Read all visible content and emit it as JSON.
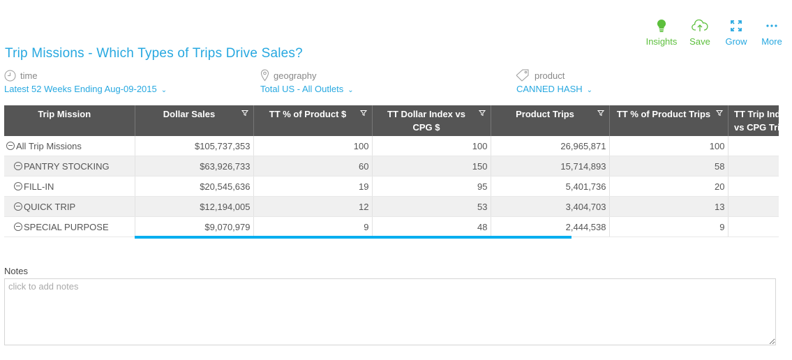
{
  "toolbar": {
    "insights": {
      "label": "Insights",
      "icon": "lightbulb-icon"
    },
    "save": {
      "label": "Save",
      "icon": "cloud-upload-icon"
    },
    "grow": {
      "label": "Grow",
      "icon": "expand-icon"
    },
    "more": {
      "label": "More",
      "icon": "ellipsis-icon"
    }
  },
  "page_title": "Trip Missions - Which Types of Trips Drive Sales?",
  "filters": {
    "time": {
      "label": "time",
      "value": "Latest 52 Weeks Ending Aug-09-2015",
      "icon": "clock-icon"
    },
    "geography": {
      "label": "geography",
      "value": "Total US - All Outlets",
      "icon": "map-pin-icon"
    },
    "product": {
      "label": "product",
      "value": "CANNED HASH",
      "icon": "tag-icon"
    }
  },
  "table": {
    "columns": [
      "Trip Mission",
      "Dollar Sales",
      "TT % of Product $",
      "TT Dollar Index vs CPG $",
      "Product Trips",
      "TT % of Product Trips",
      "TT Trip Index vs CPG Trips"
    ],
    "rows": [
      {
        "label": "All Trip Missions",
        "values": [
          "$105,737,353",
          "100",
          "100",
          "26,965,871",
          "100",
          ""
        ]
      },
      {
        "label": "PANTRY STOCKING",
        "values": [
          "$63,926,733",
          "60",
          "150",
          "15,714,893",
          "58",
          ""
        ]
      },
      {
        "label": "FILL-IN",
        "values": [
          "$20,545,636",
          "19",
          "95",
          "5,401,736",
          "20",
          ""
        ]
      },
      {
        "label": "QUICK TRIP",
        "values": [
          "$12,194,005",
          "12",
          "53",
          "3,404,703",
          "13",
          ""
        ]
      },
      {
        "label": "SPECIAL PURPOSE",
        "values": [
          "$9,070,979",
          "9",
          "48",
          "2,444,538",
          "9",
          ""
        ]
      }
    ]
  },
  "notes": {
    "label": "Notes",
    "placeholder": "click to add notes"
  },
  "colors": {
    "accent": "#27a8e0",
    "green": "#5cbf3c",
    "header_bg": "#555555",
    "scroll": "#00aeef"
  }
}
